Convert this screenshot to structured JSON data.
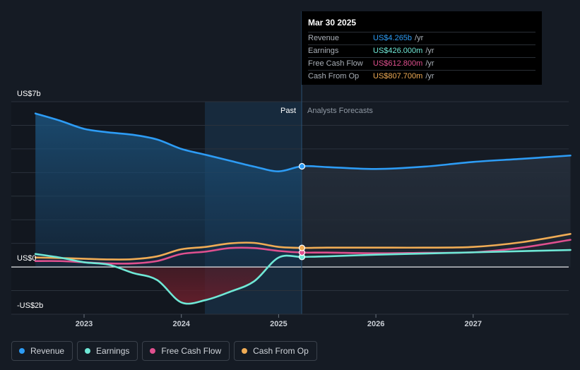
{
  "tooltip": {
    "date": "Mar 30 2025",
    "rows": [
      {
        "name": "Revenue",
        "value": "US$4.265b",
        "unit": "/yr",
        "color": "#2d9cf5"
      },
      {
        "name": "Earnings",
        "value": "US$426.000m",
        "unit": "/yr",
        "color": "#6fe8d6"
      },
      {
        "name": "Free Cash Flow",
        "value": "US$612.800m",
        "unit": "/yr",
        "color": "#e0508f"
      },
      {
        "name": "Cash From Op",
        "value": "US$807.700m",
        "unit": "/yr",
        "color": "#f0ac55"
      }
    ]
  },
  "labels": {
    "past": "Past",
    "forecast": "Analysts Forecasts",
    "y_top": "US$7b",
    "y_zero": "US$0",
    "y_bottom": "-US$2b"
  },
  "legend": [
    {
      "label": "Revenue",
      "color": "#2d9cf5"
    },
    {
      "label": "Earnings",
      "color": "#6fe8d6"
    },
    {
      "label": "Free Cash Flow",
      "color": "#e0508f"
    },
    {
      "label": "Cash From Op",
      "color": "#f0ac55"
    }
  ],
  "chart_data": {
    "type": "line",
    "y_unit": "US$ billions",
    "ylim": [
      -2,
      7
    ],
    "x_ticks": [
      "2023",
      "2024",
      "2025",
      "2026",
      "2027"
    ],
    "past_end": 2025.24,
    "highlight_start": 2024.25,
    "series": [
      {
        "name": "Revenue",
        "color": "#2d9cf5",
        "points": [
          [
            2022.5,
            6.5
          ],
          [
            2022.75,
            6.2
          ],
          [
            2023.0,
            5.85
          ],
          [
            2023.25,
            5.7
          ],
          [
            2023.5,
            5.6
          ],
          [
            2023.75,
            5.4
          ],
          [
            2024.0,
            5.0
          ],
          [
            2024.25,
            4.75
          ],
          [
            2024.5,
            4.5
          ],
          [
            2024.75,
            4.25
          ],
          [
            2025.0,
            4.05
          ],
          [
            2025.24,
            4.265
          ],
          [
            2025.5,
            4.23
          ],
          [
            2026.0,
            4.15
          ],
          [
            2026.5,
            4.25
          ],
          [
            2027.0,
            4.45
          ],
          [
            2027.5,
            4.58
          ],
          [
            2028.0,
            4.72
          ]
        ]
      },
      {
        "name": "Earnings",
        "color": "#6fe8d6",
        "points": [
          [
            2022.5,
            0.55
          ],
          [
            2022.75,
            0.4
          ],
          [
            2023.0,
            0.2
          ],
          [
            2023.25,
            0.1
          ],
          [
            2023.5,
            -0.25
          ],
          [
            2023.75,
            -0.55
          ],
          [
            2024.0,
            -1.5
          ],
          [
            2024.25,
            -1.4
          ],
          [
            2024.5,
            -1.05
          ],
          [
            2024.75,
            -0.6
          ],
          [
            2025.0,
            0.4
          ],
          [
            2025.24,
            0.426
          ],
          [
            2025.5,
            0.45
          ],
          [
            2026.0,
            0.52
          ],
          [
            2026.5,
            0.57
          ],
          [
            2027.0,
            0.62
          ],
          [
            2027.5,
            0.67
          ],
          [
            2028.0,
            0.72
          ]
        ]
      },
      {
        "name": "Free Cash Flow",
        "color": "#e0508f",
        "points": [
          [
            2022.5,
            0.25
          ],
          [
            2022.75,
            0.25
          ],
          [
            2023.0,
            0.2
          ],
          [
            2023.25,
            0.15
          ],
          [
            2023.5,
            0.15
          ],
          [
            2023.75,
            0.25
          ],
          [
            2024.0,
            0.55
          ],
          [
            2024.25,
            0.65
          ],
          [
            2024.5,
            0.8
          ],
          [
            2024.75,
            0.8
          ],
          [
            2025.0,
            0.68
          ],
          [
            2025.24,
            0.6128
          ],
          [
            2025.5,
            0.61
          ],
          [
            2026.0,
            0.58
          ],
          [
            2026.5,
            0.6
          ],
          [
            2027.0,
            0.62
          ],
          [
            2027.5,
            0.82
          ],
          [
            2028.0,
            1.15
          ]
        ]
      },
      {
        "name": "Cash From Op",
        "color": "#f0ac55",
        "points": [
          [
            2022.5,
            0.4
          ],
          [
            2022.75,
            0.38
          ],
          [
            2023.0,
            0.35
          ],
          [
            2023.25,
            0.32
          ],
          [
            2023.5,
            0.33
          ],
          [
            2023.75,
            0.45
          ],
          [
            2024.0,
            0.75
          ],
          [
            2024.25,
            0.85
          ],
          [
            2024.5,
            1.0
          ],
          [
            2024.75,
            1.02
          ],
          [
            2025.0,
            0.85
          ],
          [
            2025.24,
            0.8077
          ],
          [
            2025.5,
            0.82
          ],
          [
            2026.0,
            0.82
          ],
          [
            2026.5,
            0.82
          ],
          [
            2027.0,
            0.85
          ],
          [
            2027.5,
            1.05
          ],
          [
            2028.0,
            1.4
          ]
        ]
      }
    ]
  }
}
